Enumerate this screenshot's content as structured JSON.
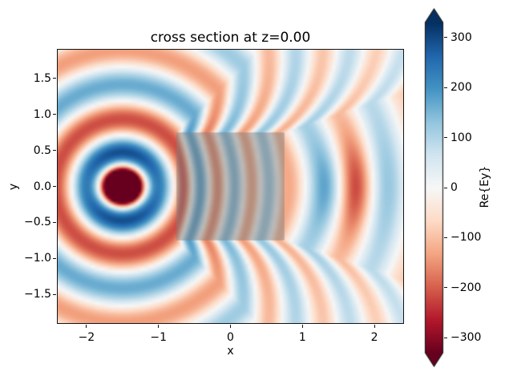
{
  "figure": {
    "title": "cross section at z=0.00",
    "background": "#ffffff"
  },
  "axes": {
    "xlabel": "x",
    "ylabel": "y",
    "x_ticks": [
      {
        "value": -2,
        "label": "−2"
      },
      {
        "value": -1,
        "label": "−1"
      },
      {
        "value": 0,
        "label": "0"
      },
      {
        "value": 1,
        "label": "1"
      },
      {
        "value": 2,
        "label": "2"
      }
    ],
    "y_ticks": [
      {
        "value": 1.5,
        "label": "1.5"
      },
      {
        "value": 1.0,
        "label": "1.0"
      },
      {
        "value": 0.5,
        "label": "0.5"
      },
      {
        "value": 0.0,
        "label": "0.0"
      },
      {
        "value": -0.5,
        "label": "−0.5"
      },
      {
        "value": -1.0,
        "label": "−1.0"
      },
      {
        "value": -1.5,
        "label": "−1.5"
      }
    ]
  },
  "colorbar": {
    "label": "Re{Ey}",
    "extend": "both",
    "colormap": "RdBu",
    "vmin": -330,
    "vmax": 330,
    "ticks": [
      {
        "value": 300,
        "label": "300"
      },
      {
        "value": 200,
        "label": "200"
      },
      {
        "value": 100,
        "label": "100"
      },
      {
        "value": 0,
        "label": "0"
      },
      {
        "value": -100,
        "label": "−100"
      },
      {
        "value": -200,
        "label": "−200"
      },
      {
        "value": -300,
        "label": "−300"
      }
    ],
    "colormap_anchors": [
      "#67001f",
      "#b2182b",
      "#d6604d",
      "#f4a582",
      "#fddbc7",
      "#f7f7f7",
      "#d1e5f0",
      "#92c5de",
      "#4393c3",
      "#2166ac",
      "#053061"
    ]
  },
  "chart_data": {
    "type": "heatmap",
    "title": "cross section at z=0.00",
    "xlabel": "x",
    "ylabel": "y",
    "xlim": [
      -2.4,
      2.4
    ],
    "ylim": [
      -1.9,
      1.9
    ],
    "x_tick_values": [
      -2,
      -1,
      0,
      1,
      2
    ],
    "y_tick_values": [
      -1.5,
      -1.0,
      -0.5,
      0.0,
      0.5,
      1.0,
      1.5
    ],
    "colormap": "RdBu",
    "vmin": -330,
    "vmax": 330,
    "colorbar_label": "Re{Ey}",
    "colorbar_tick_values": [
      -300,
      -200,
      -100,
      0,
      100,
      200,
      300
    ],
    "grid": false,
    "legend": "none",
    "description": "FDTD-style field cross section at z=0.00 showing Re{Ey}. A point source at (−1.5, 0) radiates circular waves: a saturated dark-red core ringed by dark-blue lobes and alternating red/blue rings. Waves refract through a semi-transparent gray square dielectric block spanning x,y ∈ [−0.75, 0.75] (compressed near-vertical stripes inside), emerging as curved wavefronts with a strong red focus band near (1.7, 0) flanked by dark blue bands near x≈1.2 and x≈2.15.",
    "field_model": {
      "source": {
        "x": -1.5,
        "y": 0.0,
        "core_amplitude": 650,
        "core_sigma_x": 0.34,
        "core_sigma_y": 0.27
      },
      "wavelength": 0.95,
      "wave_amplitude": 220,
      "radial_falloff_power": 0.55,
      "radial_decay": 0.06,
      "block": {
        "x_min": -0.75,
        "x_max": 0.75,
        "y_min": -0.75,
        "y_max": 0.75,
        "refractive_index": 2.0
      },
      "focus_boost": {
        "x": 1.7,
        "y": 0.0,
        "gain": 1.3,
        "sigma_x2": 0.25,
        "sigma_y2": 0.45
      }
    },
    "overlay_rect": {
      "x_min": -0.75,
      "x_max": 0.75,
      "y_min": -0.75,
      "y_max": 0.75,
      "color": "#808080",
      "alpha": 0.5
    }
  }
}
